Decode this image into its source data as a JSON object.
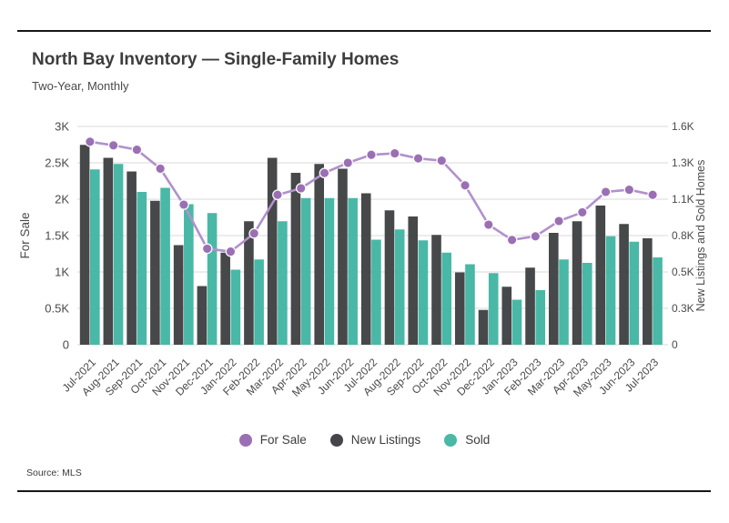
{
  "header": {
    "title": "North Bay Inventory — Single-Family Homes",
    "subtitle": "Two-Year, Monthly"
  },
  "footer": {
    "source": "Source: MLS"
  },
  "legend": {
    "items": [
      {
        "label": "For Sale",
        "color": "#9b6fb4"
      },
      {
        "label": "New Listings",
        "color": "#45464a"
      },
      {
        "label": "Sold",
        "color": "#49b8a6"
      }
    ]
  },
  "chart_data": {
    "type": "bar+line combo",
    "title": "North Bay Inventory — Single-Family Homes",
    "subtitle": "Two-Year, Monthly",
    "grid": true,
    "categories": [
      "Jul-2021",
      "Aug-2021",
      "Sep-2021",
      "Oct-2021",
      "Nov-2021",
      "Dec-2021",
      "Jan-2022",
      "Feb-2022",
      "Mar-2022",
      "Apr-2022",
      "May-2022",
      "Jun-2022",
      "Jul-2022",
      "Aug-2022",
      "Sep-2022",
      "Oct-2022",
      "Nov-2022",
      "Dec-2022",
      "Jan-2023",
      "Feb-2023",
      "Mar-2023",
      "Apr-2023",
      "May-2023",
      "Jun-2023",
      "Jul-2023"
    ],
    "series": [
      {
        "name": "For Sale",
        "type": "line",
        "axis": "left",
        "marker_color": "#9b6fb4",
        "line_color": "#b191cb",
        "values": [
          2790,
          2740,
          2680,
          2420,
          1925,
          1320,
          1280,
          1530,
          2060,
          2150,
          2360,
          2500,
          2610,
          2630,
          2560,
          2530,
          2190,
          1650,
          1440,
          1490,
          1700,
          1820,
          2100,
          2130,
          2060
        ]
      },
      {
        "name": "New Listings",
        "type": "bar",
        "axis": "right",
        "color": "#47484a",
        "values": [
          1465,
          1370,
          1270,
          1055,
          730,
          430,
          675,
          905,
          1370,
          1260,
          1325,
          1290,
          1110,
          985,
          940,
          805,
          530,
          255,
          425,
          565,
          820,
          905,
          1020,
          885,
          780
        ]
      },
      {
        "name": "Sold",
        "type": "bar",
        "axis": "right",
        "color": "#49b8a6",
        "values": [
          1285,
          1325,
          1120,
          1150,
          1030,
          965,
          550,
          625,
          905,
          1075,
          1075,
          1075,
          770,
          845,
          765,
          675,
          590,
          525,
          330,
          400,
          625,
          600,
          795,
          755,
          640
        ]
      }
    ],
    "left_axis": {
      "label": "For Sale",
      "min": 0,
      "max": 3000,
      "tick_labels": [
        "0",
        "0.5K",
        "1K",
        "1.5K",
        "2K",
        "2.5K",
        "3K"
      ]
    },
    "right_axis": {
      "label": "New Listings and Sold Homes",
      "min": 0,
      "max": 1600,
      "tick_labels": [
        "0",
        "0.3K",
        "0.5K",
        "0.8K",
        "1.1K",
        "1.3K",
        "1.6K"
      ]
    },
    "legend_position": "bottom",
    "gridline_color": "#d8d8d8"
  }
}
